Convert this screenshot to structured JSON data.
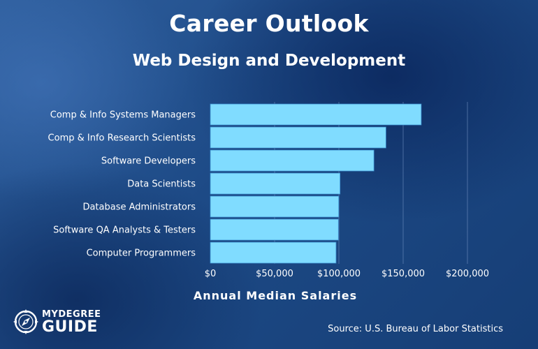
{
  "header": {
    "title": "Career Outlook",
    "subtitle": "Web Design and Development"
  },
  "footer": {
    "logo_top": "MYDEGREE",
    "logo_bottom": "GUIDE",
    "source": "Source: U.S. Bureau of Labor Statistics"
  },
  "chart_data": {
    "type": "bar",
    "orientation": "horizontal",
    "title": "Career Outlook",
    "subtitle": "Web Design and Development",
    "xlabel": "Annual Median Salaries",
    "ylabel": "",
    "categories": [
      "Comp & Info Systems Managers",
      "Comp & Info Research Scientists",
      "Software Developers",
      "Data Scientists",
      "Database Administrators",
      "Software QA Analysts & Testers",
      "Computer Programmers"
    ],
    "values": [
      164070,
      136620,
      127260,
      100910,
      99890,
      99620,
      97800
    ],
    "xlim": [
      0,
      200000
    ],
    "ticks": [
      0,
      50000,
      100000,
      150000,
      200000
    ],
    "tick_labels": [
      "$0",
      "$50,000",
      "$100,000",
      "$150,000",
      "$200,000"
    ],
    "grid": true,
    "bar_color": "#80dcff",
    "bar_edge_color": "#3a8fd0",
    "grid_color": "#6f8fbf"
  }
}
